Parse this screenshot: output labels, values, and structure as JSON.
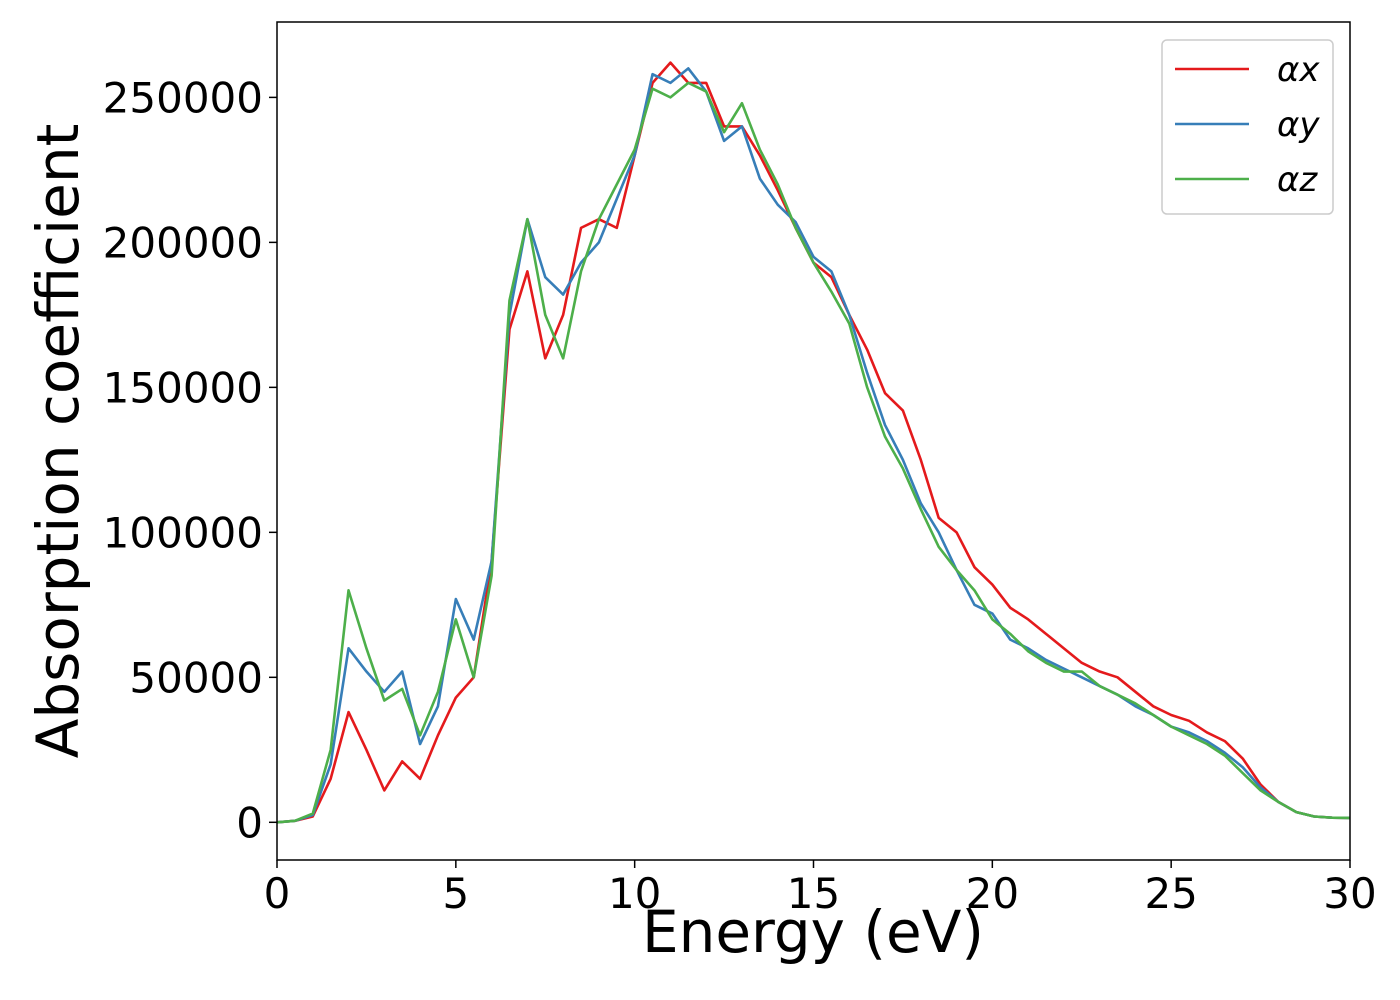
{
  "chart_data": {
    "type": "line",
    "xlabel": "Energy (eV)",
    "ylabel": "Absorption coefficient",
    "x": [
      0,
      0.5,
      1,
      1.5,
      2,
      2.5,
      3,
      3.5,
      4,
      4.5,
      5,
      5.5,
      6,
      6.5,
      7,
      7.5,
      8,
      8.5,
      9,
      9.5,
      10,
      10.5,
      11,
      11.5,
      12,
      12.5,
      13,
      13.5,
      14,
      14.5,
      15,
      15.5,
      16,
      16.5,
      17,
      17.5,
      18,
      18.5,
      19,
      19.5,
      20,
      20.5,
      21,
      21.5,
      22,
      22.5,
      23,
      23.5,
      24,
      24.5,
      25,
      25.5,
      26,
      26.5,
      27,
      27.5,
      28,
      28.5,
      29,
      29.5,
      30
    ],
    "series": [
      {
        "name": "αx",
        "color": "#e41a1c",
        "values": [
          0,
          500,
          2000,
          15000,
          38000,
          25000,
          11000,
          21000,
          15000,
          30000,
          43000,
          50000,
          90000,
          170000,
          190000,
          160000,
          175000,
          205000,
          208000,
          205000,
          230000,
          255000,
          262000,
          255000,
          255000,
          240000,
          240000,
          230000,
          218000,
          205000,
          193000,
          188000,
          175000,
          163000,
          148000,
          142000,
          125000,
          105000,
          100000,
          88000,
          82000,
          74000,
          70000,
          65000,
          60000,
          55000,
          52000,
          50000,
          45000,
          40000,
          37000,
          35000,
          31000,
          28000,
          22000,
          13000,
          7000,
          3500,
          2000,
          1600,
          1500
        ]
      },
      {
        "name": "αy",
        "color": "#377eb8",
        "values": [
          0,
          500,
          2500,
          20000,
          60000,
          52000,
          45000,
          52000,
          27000,
          40000,
          77000,
          63000,
          90000,
          175000,
          208000,
          188000,
          182000,
          193000,
          200000,
          215000,
          230000,
          258000,
          255000,
          260000,
          252000,
          235000,
          240000,
          222000,
          213000,
          207000,
          195000,
          190000,
          175000,
          155000,
          137000,
          125000,
          110000,
          100000,
          87000,
          75000,
          72000,
          63000,
          60000,
          56000,
          53000,
          50000,
          47000,
          44000,
          40000,
          37000,
          33000,
          31000,
          28000,
          24000,
          19000,
          12000,
          7000,
          3500,
          2000,
          1600,
          1500
        ]
      },
      {
        "name": "αz",
        "color": "#4daf4a",
        "values": [
          0,
          500,
          3000,
          25000,
          80000,
          60000,
          42000,
          46000,
          30000,
          45000,
          70000,
          50000,
          85000,
          180000,
          208000,
          175000,
          160000,
          190000,
          208000,
          220000,
          232000,
          253000,
          250000,
          255000,
          252000,
          238000,
          248000,
          232000,
          220000,
          205000,
          193000,
          183000,
          172000,
          150000,
          133000,
          122000,
          108000,
          95000,
          87000,
          80000,
          70000,
          65000,
          59000,
          55000,
          52000,
          52000,
          47000,
          44000,
          41000,
          37000,
          33000,
          30000,
          27000,
          23000,
          17000,
          11000,
          7000,
          3500,
          2000,
          1600,
          1500
        ]
      }
    ],
    "xlim": [
      0,
      30
    ],
    "xticks": [
      0,
      5,
      10,
      15,
      20,
      25,
      30
    ],
    "ylim": [
      -13000,
      276000
    ],
    "yticks": [
      0,
      50000,
      100000,
      150000,
      200000,
      250000
    ],
    "legend": "upper right",
    "grid": false
  }
}
